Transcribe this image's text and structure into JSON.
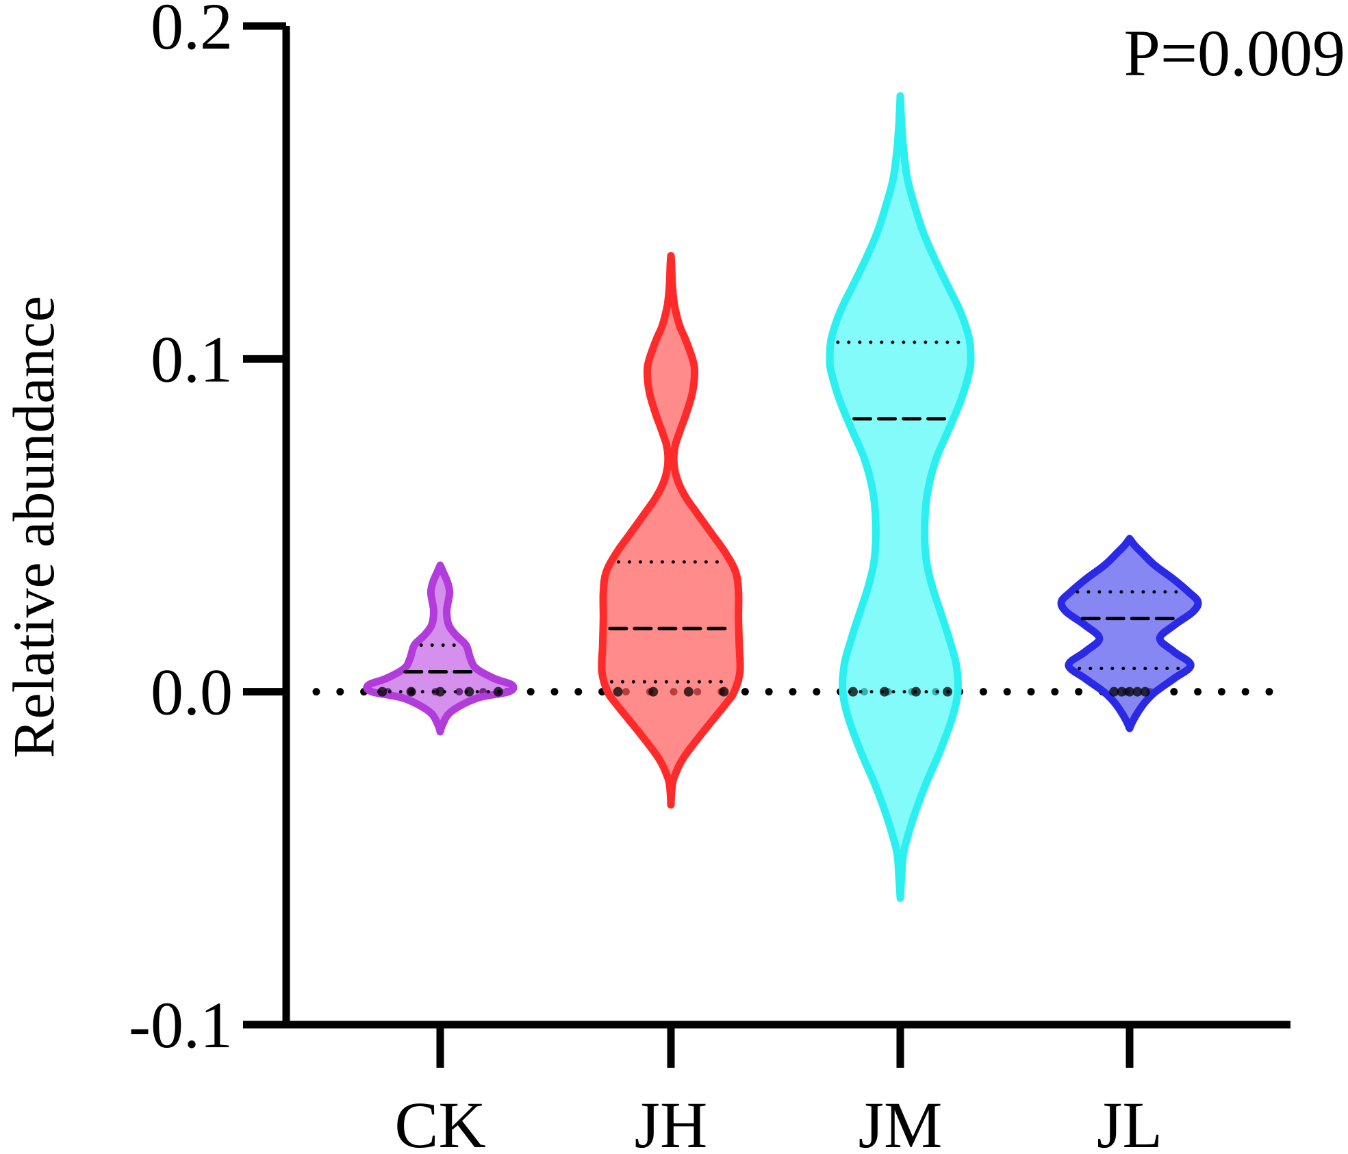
{
  "chart_data": {
    "type": "violin",
    "ylabel": "Relative abundance",
    "xlabel": "",
    "ylim": [
      -0.1,
      0.2
    ],
    "yticks": [
      {
        "value": 0.2,
        "label": "0.2"
      },
      {
        "value": 0.1,
        "label": "0.1"
      },
      {
        "value": 0.0,
        "label": "0.0"
      },
      {
        "value": -0.1,
        "label": "-0.1"
      }
    ],
    "categories": [
      "CK",
      "JH",
      "JM",
      "JL"
    ],
    "annotation": "P=0.009",
    "reference_line": 0.0,
    "series": [
      {
        "category": "CK",
        "color": "#b23bdc",
        "fill": "rgba(185,70,225,0.6)",
        "min": -0.012,
        "max": 0.038,
        "median": 0.006,
        "q1": 0.0,
        "q3": 0.014,
        "points": [
          0.0,
          0.0,
          0.0,
          0.0,
          0.0
        ],
        "profile": [
          [
            -0.012,
            0.0
          ],
          [
            -0.01,
            0.03
          ],
          [
            -0.006,
            0.15
          ],
          [
            -0.002,
            0.5
          ],
          [
            0.0,
            0.95
          ],
          [
            0.002,
            1.0
          ],
          [
            0.004,
            0.75
          ],
          [
            0.007,
            0.5
          ],
          [
            0.01,
            0.42
          ],
          [
            0.014,
            0.36
          ],
          [
            0.017,
            0.22
          ],
          [
            0.02,
            0.12
          ],
          [
            0.024,
            0.09
          ],
          [
            0.027,
            0.11
          ],
          [
            0.03,
            0.13
          ],
          [
            0.033,
            0.1
          ],
          [
            0.036,
            0.04
          ],
          [
            0.038,
            0.0
          ]
        ]
      },
      {
        "category": "JH",
        "color": "#ff2a2a",
        "fill": "rgba(255,90,90,0.7)",
        "min": -0.034,
        "max": 0.131,
        "median": 0.019,
        "q1": 0.003,
        "q3": 0.039,
        "points": [
          0.0,
          0.0,
          0.0,
          0.0
        ],
        "profile": [
          [
            -0.034,
            0.0
          ],
          [
            -0.03,
            0.01
          ],
          [
            -0.026,
            0.04
          ],
          [
            -0.02,
            0.17
          ],
          [
            -0.012,
            0.45
          ],
          [
            -0.004,
            0.75
          ],
          [
            0.0,
            0.88
          ],
          [
            0.006,
            0.96
          ],
          [
            0.014,
            0.95
          ],
          [
            0.022,
            0.94
          ],
          [
            0.03,
            0.94
          ],
          [
            0.036,
            0.9
          ],
          [
            0.042,
            0.75
          ],
          [
            0.048,
            0.55
          ],
          [
            0.054,
            0.35
          ],
          [
            0.058,
            0.22
          ],
          [
            0.062,
            0.12
          ],
          [
            0.066,
            0.06
          ],
          [
            0.07,
            0.04
          ],
          [
            0.074,
            0.06
          ],
          [
            0.078,
            0.12
          ],
          [
            0.084,
            0.22
          ],
          [
            0.09,
            0.3
          ],
          [
            0.096,
            0.33
          ],
          [
            0.1,
            0.3
          ],
          [
            0.106,
            0.2
          ],
          [
            0.11,
            0.12
          ],
          [
            0.116,
            0.05
          ],
          [
            0.122,
            0.02
          ],
          [
            0.128,
            0.01
          ],
          [
            0.131,
            0.0
          ]
        ]
      },
      {
        "category": "JM",
        "color": "#2cf0f0",
        "fill": "rgba(80,250,250,0.7)",
        "min": -0.062,
        "max": 0.179,
        "median": 0.082,
        "q1": 0.0,
        "q3": 0.105,
        "points": [
          0.0,
          0.0,
          0.0,
          0.0
        ],
        "profile": [
          [
            -0.062,
            0.0
          ],
          [
            -0.055,
            0.02
          ],
          [
            -0.048,
            0.05
          ],
          [
            -0.038,
            0.18
          ],
          [
            -0.028,
            0.35
          ],
          [
            -0.018,
            0.55
          ],
          [
            -0.008,
            0.72
          ],
          [
            0.0,
            0.8
          ],
          [
            0.008,
            0.78
          ],
          [
            0.016,
            0.68
          ],
          [
            0.024,
            0.56
          ],
          [
            0.032,
            0.44
          ],
          [
            0.04,
            0.36
          ],
          [
            0.05,
            0.34
          ],
          [
            0.06,
            0.38
          ],
          [
            0.07,
            0.5
          ],
          [
            0.08,
            0.7
          ],
          [
            0.088,
            0.85
          ],
          [
            0.096,
            0.96
          ],
          [
            0.1,
            0.98
          ],
          [
            0.106,
            0.96
          ],
          [
            0.114,
            0.84
          ],
          [
            0.122,
            0.66
          ],
          [
            0.13,
            0.48
          ],
          [
            0.138,
            0.32
          ],
          [
            0.146,
            0.2
          ],
          [
            0.154,
            0.1
          ],
          [
            0.162,
            0.05
          ],
          [
            0.17,
            0.02
          ],
          [
            0.179,
            0.0
          ]
        ]
      },
      {
        "category": "JL",
        "color": "#2a2ae6",
        "fill": "rgba(95,95,240,0.75)",
        "min": -0.011,
        "max": 0.046,
        "median": 0.022,
        "q1": 0.007,
        "q3": 0.03,
        "points": [
          0.0,
          0.0,
          0.0,
          0.0,
          0.0
        ],
        "profile": [
          [
            -0.011,
            0.0
          ],
          [
            -0.009,
            0.04
          ],
          [
            -0.006,
            0.12
          ],
          [
            -0.003,
            0.22
          ],
          [
            0.0,
            0.36
          ],
          [
            0.004,
            0.62
          ],
          [
            0.008,
            0.85
          ],
          [
            0.012,
            0.62
          ],
          [
            0.016,
            0.42
          ],
          [
            0.02,
            0.62
          ],
          [
            0.024,
            0.88
          ],
          [
            0.027,
            0.95
          ],
          [
            0.03,
            0.82
          ],
          [
            0.034,
            0.6
          ],
          [
            0.038,
            0.35
          ],
          [
            0.042,
            0.16
          ],
          [
            0.044,
            0.07
          ],
          [
            0.046,
            0.0
          ]
        ]
      }
    ]
  }
}
